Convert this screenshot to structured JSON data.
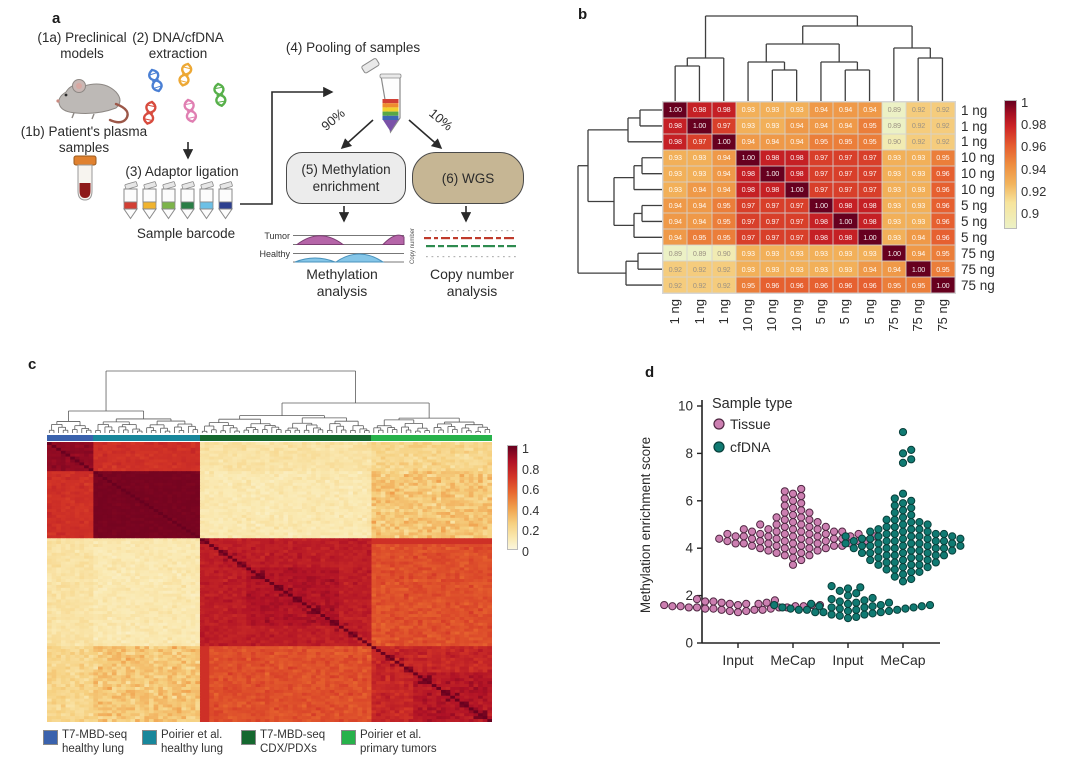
{
  "panels": {
    "a": "a",
    "b": "b",
    "c": "c",
    "d": "d"
  },
  "panel_a": {
    "step1a": [
      "(1a) Preclinical",
      "models"
    ],
    "step2": [
      "(2) DNA/cfDNA",
      "extraction"
    ],
    "step1b": [
      "(1b) Patient's plasma",
      "samples"
    ],
    "step3": "(3) Adaptor ligation",
    "sample_barcode": "Sample barcode",
    "step4": "(4) Pooling of samples",
    "pct_meth": "90%",
    "pct_wgs": "10%",
    "box5": [
      "(5) Methylation",
      "enrichment"
    ],
    "box6": "(6) WGS",
    "track_tumor": "Tumor",
    "track_healthy": "Healthy",
    "meth_analysis": [
      "Methylation",
      "analysis"
    ],
    "cnv_analysis": [
      "Copy number",
      "analysis"
    ],
    "cnv_axis": "Copy number",
    "barcode_colors": [
      "#d23f34",
      "#f0b32e",
      "#7cb44a",
      "#2a7e46",
      "#6cc0e6",
      "#2c3f8f"
    ],
    "dna_colors": [
      "#4a7fd4",
      "#eda834",
      "#57b04a",
      "#d84b3e",
      "#e07fb2"
    ]
  },
  "chart_data": [
    {
      "id": "panel-b-replicate-correlation-heatmap",
      "type": "heatmap",
      "clustered": true,
      "row_labels": [
        "1 ng",
        "1 ng",
        "1 ng",
        "10 ng",
        "10 ng",
        "10 ng",
        "5 ng",
        "5 ng",
        "5 ng",
        "75 ng",
        "75 ng",
        "75 ng"
      ],
      "col_labels": [
        "1 ng",
        "1 ng",
        "1 ng",
        "10 ng",
        "10 ng",
        "10 ng",
        "5 ng",
        "5 ng",
        "5 ng",
        "75 ng",
        "75 ng",
        "75 ng"
      ],
      "matrix": [
        [
          1.0,
          0.98,
          0.98,
          0.93,
          0.93,
          0.93,
          0.94,
          0.94,
          0.94,
          0.89,
          0.92,
          0.92
        ],
        [
          0.98,
          1.0,
          0.97,
          0.93,
          0.93,
          0.94,
          0.94,
          0.94,
          0.95,
          0.89,
          0.92,
          0.92
        ],
        [
          0.98,
          0.97,
          1.0,
          0.94,
          0.94,
          0.94,
          0.95,
          0.95,
          0.95,
          0.9,
          0.92,
          0.92
        ],
        [
          0.93,
          0.93,
          0.94,
          1.0,
          0.98,
          0.98,
          0.97,
          0.97,
          0.97,
          0.93,
          0.93,
          0.95
        ],
        [
          0.93,
          0.93,
          0.94,
          0.98,
          1.0,
          0.98,
          0.97,
          0.97,
          0.97,
          0.93,
          0.93,
          0.96
        ],
        [
          0.93,
          0.94,
          0.94,
          0.98,
          0.98,
          1.0,
          0.97,
          0.97,
          0.97,
          0.93,
          0.93,
          0.96
        ],
        [
          0.94,
          0.94,
          0.95,
          0.97,
          0.97,
          0.97,
          1.0,
          0.98,
          0.98,
          0.93,
          0.93,
          0.96
        ],
        [
          0.94,
          0.94,
          0.95,
          0.97,
          0.97,
          0.97,
          0.98,
          1.0,
          0.98,
          0.93,
          0.93,
          0.96
        ],
        [
          0.94,
          0.95,
          0.95,
          0.97,
          0.97,
          0.97,
          0.98,
          0.98,
          1.0,
          0.93,
          0.94,
          0.96
        ],
        [
          0.89,
          0.89,
          0.9,
          0.93,
          0.93,
          0.93,
          0.93,
          0.93,
          0.93,
          1.0,
          0.94,
          0.95
        ],
        [
          0.92,
          0.92,
          0.92,
          0.93,
          0.93,
          0.93,
          0.93,
          0.93,
          0.94,
          0.94,
          1.0,
          0.95
        ],
        [
          0.92,
          0.92,
          0.92,
          0.95,
          0.96,
          0.96,
          0.96,
          0.96,
          0.96,
          0.95,
          0.95,
          1.0
        ]
      ],
      "value_range": [
        0.89,
        1
      ],
      "colorbar_ticks": [
        "1",
        "0.98",
        "0.96",
        "0.94",
        "0.92",
        "0.9"
      ]
    },
    {
      "id": "panel-c-sample-correlation-heatmap",
      "type": "heatmap",
      "clustered": true,
      "n_samples": 96,
      "groups": [
        {
          "lines": [
            "T7-MBD-seq",
            "healthy lung"
          ],
          "color": "#3a62ad",
          "n": 10
        },
        {
          "lines": [
            "Poirier et al.",
            "healthy lung"
          ],
          "color": "#18879b",
          "n": 23
        },
        {
          "lines": [
            "T7-MBD-seq",
            "CDX/PDXs"
          ],
          "color": "#15682f",
          "n": 37
        },
        {
          "lines": [
            "Poirier et al.",
            "primary tumors"
          ],
          "color": "#27b24b",
          "n": 26
        }
      ],
      "block_means": [
        [
          0.92,
          0.72,
          0.16,
          0.22
        ],
        [
          0.72,
          0.965,
          0.13,
          0.28
        ],
        [
          0.16,
          0.13,
          0.8,
          0.62
        ],
        [
          0.22,
          0.28,
          0.62,
          0.76
        ]
      ],
      "block_sd": [
        [
          0.025,
          0.03,
          0.035,
          0.05
        ],
        [
          0.03,
          0.012,
          0.035,
          0.08
        ],
        [
          0.035,
          0.035,
          0.04,
          0.045
        ],
        [
          0.05,
          0.08,
          0.045,
          0.05
        ]
      ],
      "diagonal": 0.995,
      "value_range": [
        0,
        1
      ],
      "colorbar_ticks": [
        "1",
        "0.8",
        "0.6",
        "0.4",
        "0.2",
        "0"
      ]
    },
    {
      "id": "panel-d-methylation-enrichment-swarm",
      "type": "scatter",
      "ylabel": "Methylation enrichment score",
      "ylim": [
        0,
        10
      ],
      "yticks": [
        0,
        2,
        4,
        6,
        8,
        10
      ],
      "categories": [
        "Input",
        "MeCap",
        "Input",
        "MeCap"
      ],
      "legend_title": "Sample type",
      "legend": [
        {
          "label": "Tissue",
          "color": "#cc7fb1",
          "stroke": "#4f2742"
        },
        {
          "label": "cfDNA",
          "color": "#107a72",
          "stroke": "#093f3a"
        }
      ],
      "series": [
        {
          "name": "Tissue Input",
          "legend_key": 0,
          "category_index": 0,
          "values": [
            1.3,
            1.35,
            1.35,
            1.4,
            1.4,
            1.4,
            1.45,
            1.45,
            1.45,
            1.5,
            1.5,
            1.5,
            1.5,
            1.55,
            1.55,
            1.55,
            1.55,
            1.6,
            1.6,
            1.6,
            1.6,
            1.65,
            1.65,
            1.65,
            1.7,
            1.7,
            1.75,
            1.75,
            1.8,
            1.85
          ]
        },
        {
          "name": "Tissue MeCap",
          "legend_key": 0,
          "category_index": 1,
          "values": [
            3.3,
            3.5,
            3.6,
            3.7,
            3.7,
            3.8,
            3.8,
            3.9,
            3.9,
            3.9,
            4.0,
            4.0,
            4.0,
            4.0,
            4.1,
            4.1,
            4.1,
            4.1,
            4.1,
            4.2,
            4.2,
            4.2,
            4.2,
            4.2,
            4.2,
            4.3,
            4.3,
            4.3,
            4.3,
            4.3,
            4.3,
            4.3,
            4.4,
            4.4,
            4.4,
            4.4,
            4.4,
            4.4,
            4.5,
            4.5,
            4.5,
            4.5,
            4.5,
            4.5,
            4.5,
            4.6,
            4.6,
            4.6,
            4.6,
            4.6,
            4.6,
            4.7,
            4.7,
            4.7,
            4.7,
            4.7,
            4.8,
            4.8,
            4.8,
            4.8,
            4.9,
            4.9,
            4.9,
            5.0,
            5.0,
            5.0,
            5.1,
            5.1,
            5.2,
            5.2,
            5.3,
            5.3,
            5.4,
            5.5,
            5.5,
            5.6,
            5.7,
            5.8,
            5.9,
            6.0,
            6.1,
            6.2,
            6.3,
            6.4,
            6.5
          ]
        },
        {
          "name": "cfDNA Input",
          "legend_key": 1,
          "category_index": 2,
          "values": [
            1.05,
            1.1,
            1.15,
            1.2,
            1.2,
            1.25,
            1.3,
            1.3,
            1.3,
            1.35,
            1.35,
            1.4,
            1.4,
            1.4,
            1.4,
            1.45,
            1.45,
            1.45,
            1.5,
            1.5,
            1.5,
            1.5,
            1.55,
            1.55,
            1.55,
            1.6,
            1.6,
            1.6,
            1.65,
            1.65,
            1.7,
            1.7,
            1.75,
            1.8,
            1.85,
            1.9,
            2.0,
            2.1,
            2.2,
            2.3,
            2.35,
            2.4
          ]
        },
        {
          "name": "cfDNA MeCap",
          "legend_key": 1,
          "category_index": 3,
          "values": [
            2.6,
            2.7,
            2.8,
            2.9,
            3.0,
            3.0,
            3.1,
            3.1,
            3.2,
            3.2,
            3.3,
            3.3,
            3.3,
            3.4,
            3.4,
            3.4,
            3.5,
            3.5,
            3.5,
            3.6,
            3.6,
            3.6,
            3.7,
            3.7,
            3.7,
            3.7,
            3.8,
            3.8,
            3.8,
            3.8,
            3.9,
            3.9,
            3.9,
            3.9,
            4.0,
            4.0,
            4.0,
            4.0,
            4.0,
            4.1,
            4.1,
            4.1,
            4.1,
            4.1,
            4.2,
            4.2,
            4.2,
            4.2,
            4.2,
            4.3,
            4.3,
            4.3,
            4.3,
            4.3,
            4.4,
            4.4,
            4.4,
            4.4,
            4.4,
            4.5,
            4.5,
            4.5,
            4.5,
            4.5,
            4.6,
            4.6,
            4.6,
            4.6,
            4.7,
            4.7,
            4.7,
            4.8,
            4.8,
            4.8,
            4.9,
            4.9,
            5.0,
            5.0,
            5.1,
            5.1,
            5.2,
            5.2,
            5.3,
            5.4,
            5.5,
            5.6,
            5.7,
            5.8,
            5.9,
            6.0,
            6.1,
            6.3,
            7.6,
            7.75,
            8.0,
            8.15,
            8.9
          ]
        }
      ]
    }
  ]
}
